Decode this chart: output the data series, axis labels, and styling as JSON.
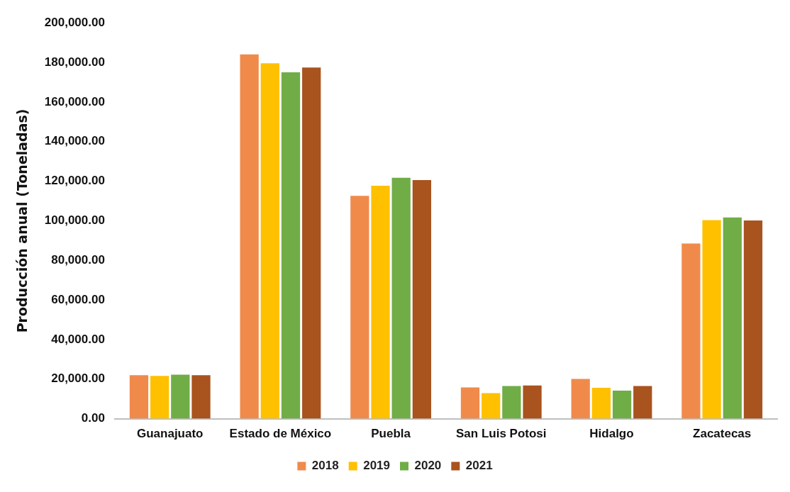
{
  "chart_data": {
    "type": "bar",
    "ylabel": "Producción anual (Toneladas)",
    "categories": [
      "Guanajuato",
      "Estado de México",
      "Puebla",
      "San Luis Potosi",
      "Hidalgo",
      "Zacatecas"
    ],
    "series": [
      {
        "name": "2018",
        "color": "#f08a4b",
        "values": [
          22000,
          184000,
          112600,
          15800,
          20100,
          88500
        ]
      },
      {
        "name": "2019",
        "color": "#ffc000",
        "values": [
          21600,
          179600,
          117700,
          12900,
          15600,
          100300
        ]
      },
      {
        "name": "2020",
        "color": "#70ad47",
        "values": [
          22200,
          175000,
          121700,
          16500,
          14200,
          101700
        ]
      },
      {
        "name": "2021",
        "color": "#a9531e",
        "values": [
          22000,
          177400,
          120600,
          16800,
          16500,
          100100
        ]
      }
    ],
    "ylim": [
      0,
      200000
    ],
    "yticks": [
      {
        "value": 0,
        "label": "0.00"
      },
      {
        "value": 20000,
        "label": "20,000.00"
      },
      {
        "value": 40000,
        "label": "40,000.00"
      },
      {
        "value": 60000,
        "label": "60,000.00"
      },
      {
        "value": 80000,
        "label": "80,000.00"
      },
      {
        "value": 100000,
        "label": "100,000.00"
      },
      {
        "value": 120000,
        "label": "120,000.00"
      },
      {
        "value": 140000,
        "label": "140,000.00"
      },
      {
        "value": 160000,
        "label": "160,000.00"
      },
      {
        "value": 180000,
        "label": "180,000.00"
      },
      {
        "value": 200000,
        "label": "200,000.00"
      }
    ],
    "grid": false,
    "legend": "bottom"
  }
}
